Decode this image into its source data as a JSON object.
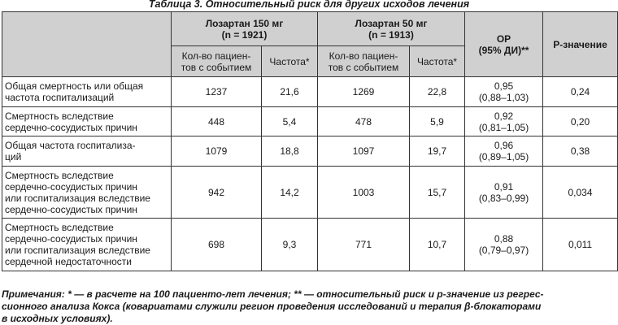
{
  "caption": "Таблица 3. Относительный риск для других исходов лечения",
  "headers": {
    "group1": [
      "Лозартан 150 мг",
      "(n = 1921)"
    ],
    "group2": [
      "Лозартан 50 мг",
      "(n = 1913)"
    ],
    "or": [
      "ОР",
      "(95% ДИ)**"
    ],
    "p": "Р-значение",
    "count": [
      "Кол-во пациен-",
      "тов с событием"
    ],
    "rate": "Частота*"
  },
  "rows": [
    {
      "label": [
        "Общая смертность или общая",
        "частота госпитализаций"
      ],
      "n1": "1237",
      "r1": "21,6",
      "n2": "1269",
      "r2": "22,8",
      "or": [
        "0,95",
        "(0,88–1,03)"
      ],
      "p": "0,24"
    },
    {
      "label": [
        "Смертность вследствие",
        "сердечно-сосудистых причин"
      ],
      "n1": "448",
      "r1": "5,4",
      "n2": "478",
      "r2": "5,9",
      "or": [
        "0,92",
        "(0,81–1,05)"
      ],
      "p": "0,20"
    },
    {
      "label": [
        "Общая частота госпитализа-",
        "ций"
      ],
      "n1": "1079",
      "r1": "18,8",
      "n2": "1097",
      "r2": "19,7",
      "or": [
        "0,96",
        "(0,89–1,05)"
      ],
      "p": "0,38"
    },
    {
      "label": [
        "Смертность вследствие",
        "сердечно-сосудистых причин",
        "или госпитализация вследствие",
        "сердечно-сосудистых причин"
      ],
      "n1": "942",
      "r1": "14,2",
      "n2": "1003",
      "r2": "15,7",
      "or": [
        "0,91",
        "(0,83–0,99)"
      ],
      "p": "0,034"
    },
    {
      "label": [
        "Смертность вследствие",
        "сердечно-сосудистых причин",
        "или госпитализация вследствие",
        "сердечной недостаточности"
      ],
      "n1": "698",
      "r1": "9,3",
      "n2": "771",
      "r2": "10,7",
      "or": [
        "0,88",
        "(0,79–0,97)"
      ],
      "p": "0,011"
    }
  ],
  "note": [
    "Примечания: * — в расчете на 100 пациенто-лет лечения; ** — относительный риск и р-значение из регрес-",
    "сионного анализа Кокса (ковариатами служили регион проведения исследований и терапия β-блокаторами",
    "в исходных условиях)."
  ]
}
